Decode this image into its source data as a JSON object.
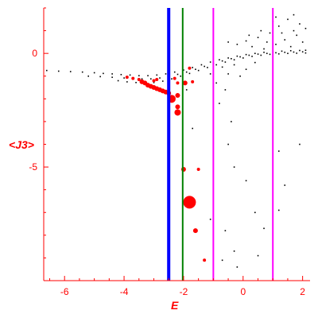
{
  "chart_data": {
    "type": "scatter",
    "title": "",
    "xlabel": "E",
    "ylabel": "<J3>",
    "xlim": [
      -6.7,
      2.25
    ],
    "ylim": [
      -10,
      2
    ],
    "x_ticks": [
      -6,
      -4,
      -2,
      0,
      2
    ],
    "x_tick_labels": [
      "-6",
      "-4",
      "-2",
      "0",
      "2"
    ],
    "y_ticks": [
      0,
      -5
    ],
    "y_tick_labels": [
      "0",
      "-5"
    ],
    "grid": false,
    "vertical_lines": [
      {
        "x": -2.5,
        "color": "#0000ff",
        "style": "thick"
      },
      {
        "x": -2.03,
        "color": "#008000",
        "style": "thin"
      },
      {
        "x": -1.0,
        "color": "#ff00ff",
        "style": "thin"
      },
      {
        "x": 1.0,
        "color": "#ff00ff",
        "style": "thin"
      }
    ],
    "series": [
      {
        "color": "#000000",
        "marker": "dot",
        "points": [
          [
            -6.6,
            -0.75
          ],
          [
            -6.2,
            -0.78
          ],
          [
            -5.8,
            -0.8
          ],
          [
            -5.4,
            -0.82
          ],
          [
            -5.0,
            -0.85
          ],
          [
            -4.7,
            -0.88
          ],
          [
            -4.4,
            -0.9
          ],
          [
            -4.1,
            -0.93
          ],
          [
            -3.8,
            -0.95
          ],
          [
            -3.5,
            -0.98
          ],
          [
            -3.2,
            -0.98
          ],
          [
            -2.9,
            -0.95
          ],
          [
            -2.6,
            -0.9
          ],
          [
            -2.3,
            -0.82
          ],
          [
            -2.0,
            -0.73
          ],
          [
            -1.7,
            -0.62
          ],
          [
            -1.4,
            -0.5
          ],
          [
            -1.1,
            -0.38
          ],
          [
            -0.8,
            -0.28
          ],
          [
            -0.5,
            -0.2
          ],
          [
            -0.2,
            -0.12
          ],
          [
            0.1,
            -0.05
          ],
          [
            0.4,
            0.0
          ],
          [
            0.7,
            0.05
          ],
          [
            1.0,
            0.08
          ],
          [
            1.3,
            0.1
          ],
          [
            1.6,
            0.12
          ],
          [
            1.9,
            0.13
          ],
          [
            2.1,
            0.14
          ],
          [
            -5.2,
            -1.0
          ],
          [
            -4.8,
            -1.02
          ],
          [
            -4.4,
            -1.05
          ],
          [
            -4.0,
            -1.08
          ],
          [
            -3.7,
            -1.1
          ],
          [
            -3.4,
            -1.12
          ],
          [
            -3.1,
            -1.12
          ],
          [
            -2.8,
            -1.08
          ],
          [
            -2.5,
            -1.0
          ],
          [
            -2.2,
            -0.92
          ],
          [
            -1.9,
            -0.82
          ],
          [
            -1.6,
            -0.7
          ],
          [
            -1.3,
            -0.57
          ],
          [
            -1.0,
            -0.45
          ],
          [
            -0.7,
            -0.33
          ],
          [
            -0.4,
            -0.23
          ],
          [
            -0.1,
            -0.15
          ],
          [
            0.2,
            -0.08
          ],
          [
            0.5,
            -0.03
          ],
          [
            0.8,
            0.0
          ],
          [
            1.1,
            0.03
          ],
          [
            1.4,
            0.05
          ],
          [
            1.7,
            0.06
          ],
          [
            2.0,
            0.07
          ],
          [
            -4.2,
            -1.2
          ],
          [
            -3.9,
            -1.25
          ],
          [
            -3.6,
            -1.28
          ],
          [
            -3.3,
            -1.3
          ],
          [
            -3.0,
            -1.28
          ],
          [
            -2.7,
            -1.22
          ],
          [
            -2.4,
            -1.12
          ],
          [
            -2.1,
            -1.0
          ],
          [
            -1.8,
            -0.88
          ],
          [
            -1.5,
            -0.75
          ],
          [
            -1.2,
            -0.62
          ],
          [
            -0.9,
            -0.5
          ],
          [
            -0.6,
            -0.38
          ],
          [
            -0.3,
            -0.28
          ],
          [
            0.0,
            -0.2
          ],
          [
            0.3,
            -0.13
          ],
          [
            0.6,
            -0.08
          ],
          [
            0.9,
            -0.04
          ],
          [
            1.2,
            -0.02
          ],
          [
            1.5,
            0.0
          ],
          [
            1.8,
            0.01
          ],
          [
            2.1,
            0.02
          ],
          [
            -0.5,
            0.5
          ],
          [
            -0.2,
            0.4
          ],
          [
            0.1,
            0.55
          ],
          [
            0.3,
            0.3
          ],
          [
            0.5,
            0.7
          ],
          [
            0.7,
            0.2
          ],
          [
            0.9,
            0.9
          ],
          [
            1.1,
            0.4
          ],
          [
            1.2,
            1.2
          ],
          [
            1.4,
            0.6
          ],
          [
            1.5,
            1.5
          ],
          [
            1.6,
            0.3
          ],
          [
            1.7,
            1.0
          ],
          [
            1.8,
            0.8
          ],
          [
            1.9,
            1.3
          ],
          [
            2.0,
            0.5
          ],
          [
            2.1,
            1.1
          ],
          [
            1.3,
            0.9
          ],
          [
            1.0,
            1.4
          ],
          [
            0.8,
            0.5
          ],
          [
            0.6,
            1.0
          ],
          [
            0.2,
            0.8
          ],
          [
            1.7,
            1.7
          ],
          [
            1.1,
            1.6
          ],
          [
            -0.7,
            -0.6
          ],
          [
            -0.5,
            -0.9
          ],
          [
            -0.3,
            -0.5
          ],
          [
            -0.1,
            -1.0
          ],
          [
            0.1,
            -0.7
          ],
          [
            0.4,
            -0.4
          ],
          [
            -0.9,
            -1.3
          ],
          [
            -0.6,
            -1.6
          ],
          [
            -1.1,
            -0.9
          ],
          [
            -0.8,
            -2.2
          ],
          [
            -0.4,
            -3.0
          ],
          [
            -0.5,
            -4.0
          ],
          [
            -0.3,
            -5.0
          ],
          [
            0.1,
            -5.6
          ],
          [
            1.2,
            -4.3
          ],
          [
            1.4,
            -5.8
          ],
          [
            1.9,
            -4.0
          ],
          [
            -1.1,
            -7.3
          ],
          [
            -0.6,
            -7.8
          ],
          [
            0.4,
            -7.0
          ],
          [
            -0.3,
            -8.7
          ],
          [
            0.5,
            -8.9
          ],
          [
            -0.7,
            -9.1
          ],
          [
            -0.2,
            -9.4
          ],
          [
            0.7,
            -7.7
          ],
          [
            1.2,
            -6.9
          ],
          [
            -1.7,
            -3.3
          ],
          [
            -1.9,
            -1.6
          ]
        ]
      },
      {
        "color": "#ff0000",
        "marker": "filled-circle",
        "points": [
          [
            -3.9,
            -1.05
          ],
          [
            -3.7,
            -1.1
          ],
          [
            -3.5,
            -1.15
          ],
          [
            -3.4,
            -1.25
          ],
          [
            -3.3,
            -1.3
          ],
          [
            -3.2,
            -1.4
          ],
          [
            -3.1,
            -1.45
          ],
          [
            -3.0,
            -1.5
          ],
          [
            -2.9,
            -1.55
          ],
          [
            -2.8,
            -1.6
          ],
          [
            -2.7,
            -1.65
          ],
          [
            -2.6,
            -1.7
          ],
          [
            -2.5,
            -1.75
          ],
          [
            -3.0,
            -1.2
          ],
          [
            -2.9,
            -1.15
          ],
          [
            -2.3,
            -1.1
          ],
          [
            -2.2,
            -1.3
          ],
          [
            -1.95,
            -1.3
          ],
          [
            -1.8,
            -0.65
          ],
          [
            -1.7,
            -1.25
          ],
          [
            -2.2,
            -1.85
          ],
          [
            -2.4,
            -2.0
          ],
          [
            -2.2,
            -2.35
          ],
          [
            -2.2,
            -2.6
          ],
          [
            -2.0,
            -5.1
          ],
          [
            -1.5,
            -5.1
          ],
          [
            -1.8,
            -6.55
          ],
          [
            -1.6,
            -7.8
          ],
          [
            -1.3,
            -9.1
          ]
        ],
        "sizes": [
          2,
          2,
          2,
          3,
          3,
          3,
          3,
          3,
          3,
          3,
          3,
          3,
          3,
          2,
          2,
          2,
          2,
          3,
          2,
          2,
          3,
          5,
          3,
          4,
          3,
          2,
          8,
          3,
          2
        ]
      }
    ]
  }
}
